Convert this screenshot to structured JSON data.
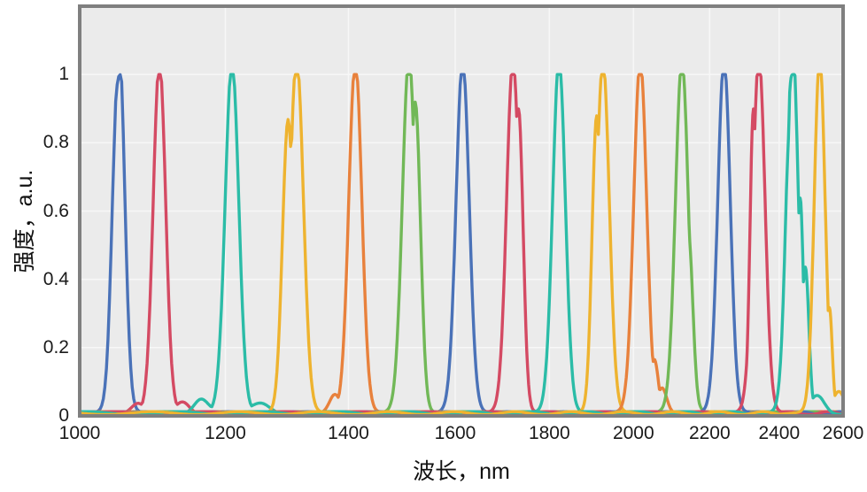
{
  "figure": {
    "background": "#ffffff",
    "plot_background": "#ebebeb",
    "frame_color": "#7f7f7f",
    "frame_width": 4,
    "grid_color": "#f7f7f7",
    "text_color": "#1a1a1a",
    "line_width": 3.4
  },
  "chart_data": {
    "type": "line",
    "title": "",
    "xlabel": "波长，nm",
    "ylabel": "强度，a.u.",
    "x_scale": "log",
    "xlim": [
      1000,
      2600
    ],
    "ylim": [
      0,
      1.2
    ],
    "x_ticks": [
      1000,
      1200,
      1400,
      1600,
      1800,
      2000,
      2200,
      2400,
      2600
    ],
    "y_ticks": [
      0,
      0.2,
      0.4,
      0.6,
      0.8,
      1
    ],
    "grid": true,
    "legend": "none",
    "description": "Sixteen normalized narrow emission spectra (tunable source) peaking at unity, centers spaced ~100 nm across 1050–2525 nm, drawn with a repeating 6-color cycle on a logarithmic wavelength axis.",
    "palette_cycle": [
      "#4a72b8",
      "#d44a63",
      "#2bbca7",
      "#eeb32f",
      "#e8813c",
      "#71b857"
    ],
    "series": [
      {
        "label": "1050 nm",
        "color": "#4a72b8",
        "center_nm": 1050,
        "fwhm_nm": 18,
        "peak_value": 1.0,
        "amp": 1.1,
        "top_notch": {
          "offset_nm": -4.5,
          "depth": 0.06,
          "width_nm": 3
        },
        "shoulders": []
      },
      {
        "label": "1105 nm",
        "color": "#d44a63",
        "center_nm": 1105,
        "fwhm_nm": 20,
        "peak_value": 1.0,
        "amp": 1.02,
        "shoulders": [
          {
            "offset_nm": -30,
            "amp": 0.025,
            "width_nm": 8
          },
          {
            "offset_nm": 33,
            "amp": 0.03,
            "width_nm": 9
          }
        ]
      },
      {
        "label": "1210 nm",
        "color": "#2bbca7",
        "center_nm": 1210,
        "fwhm_nm": 24,
        "peak_value": 1.0,
        "amp": 1.02,
        "shoulders": [
          {
            "offset_nm": -46,
            "amp": 0.04,
            "width_nm": 10
          },
          {
            "offset_nm": 45,
            "amp": 0.028,
            "width_nm": 14
          }
        ]
      },
      {
        "label": "1312 nm",
        "color": "#eeb32f",
        "center_nm": 1312,
        "fwhm_nm": 26,
        "peak_value": 1.0,
        "amp": 1.03,
        "shoulders": [
          {
            "offset_nm": -14,
            "amp": 0.85,
            "width_nm": 9
          }
        ]
      },
      {
        "label": "1412 nm",
        "color": "#e8813c",
        "center_nm": 1412,
        "fwhm_nm": 27,
        "peak_value": 1.0,
        "amp": 1.02,
        "shoulders": [
          {
            "offset_nm": -36,
            "amp": 0.05,
            "width_nm": 9
          }
        ]
      },
      {
        "label": "1510 nm",
        "color": "#71b857",
        "center_nm": 1510,
        "fwhm_nm": 29,
        "peak_value": 1.0,
        "amp": 1.03,
        "shoulders": [
          {
            "offset_nm": 12,
            "amp": 0.9,
            "width_nm": 10
          }
        ]
      },
      {
        "label": "1615 nm",
        "color": "#4a72b8",
        "center_nm": 1615,
        "fwhm_nm": 31,
        "peak_value": 1.0,
        "amp": 1.02,
        "shoulders": []
      },
      {
        "label": "1720 nm",
        "color": "#d44a63",
        "center_nm": 1720,
        "fwhm_nm": 32,
        "peak_value": 1.0,
        "amp": 1.02,
        "shoulders": [
          {
            "offset_nm": 12,
            "amp": 0.88,
            "width_nm": 10
          }
        ]
      },
      {
        "label": "1822 nm",
        "color": "#2bbca7",
        "center_nm": 1822,
        "fwhm_nm": 34,
        "peak_value": 1.0,
        "amp": 1.02,
        "shoulders": []
      },
      {
        "label": "1925 nm",
        "color": "#eeb32f",
        "center_nm": 1925,
        "fwhm_nm": 36,
        "peak_value": 1.0,
        "amp": 1.02,
        "shoulders": [
          {
            "offset_nm": -15,
            "amp": 0.86,
            "width_nm": 11
          }
        ]
      },
      {
        "label": "2017 nm",
        "color": "#e8813c",
        "center_nm": 2017,
        "fwhm_nm": 38,
        "peak_value": 1.0,
        "amp": 1.02,
        "shoulders": [
          {
            "offset_nm": 36,
            "amp": 0.15,
            "width_nm": 10
          },
          {
            "offset_nm": 56,
            "amp": 0.07,
            "width_nm": 12
          }
        ]
      },
      {
        "label": "2125 nm",
        "color": "#71b857",
        "center_nm": 2125,
        "fwhm_nm": 40,
        "peak_value": 1.0,
        "amp": 1.02,
        "shoulders": [
          {
            "offset_nm": 17,
            "amp": 0.52,
            "width_nm": 12
          }
        ]
      },
      {
        "label": "2240 nm",
        "color": "#4a72b8",
        "center_nm": 2240,
        "fwhm_nm": 41,
        "peak_value": 1.0,
        "amp": 1.02,
        "shoulders": []
      },
      {
        "label": "2340 nm",
        "color": "#d44a63",
        "center_nm": 2340,
        "fwhm_nm": 42,
        "peak_value": 1.0,
        "amp": 1.03,
        "shoulders": [
          {
            "offset_nm": -16,
            "amp": 0.88,
            "width_nm": 10
          }
        ]
      },
      {
        "label": "2440 nm",
        "color": "#2bbca7",
        "center_nm": 2440,
        "fwhm_nm": 42,
        "peak_value": 1.0,
        "amp": 1.08,
        "top_notch": {
          "offset_nm": -11,
          "depth": 0.07,
          "width_nm": 5
        },
        "shoulders": [
          {
            "offset_nm": 24,
            "amp": 0.62,
            "width_nm": 10
          },
          {
            "offset_nm": 40,
            "amp": 0.42,
            "width_nm": 11
          },
          {
            "offset_nm": 78,
            "amp": 0.05,
            "width_nm": 22
          }
        ]
      },
      {
        "label": "2525 nm",
        "color": "#eeb32f",
        "center_nm": 2525,
        "fwhm_nm": 40,
        "peak_value": 1.0,
        "amp": 1.03,
        "shoulders": [
          {
            "offset_nm": 31,
            "amp": 0.3,
            "width_nm": 9
          },
          {
            "offset_nm": 62,
            "amp": 0.06,
            "width_nm": 18
          }
        ]
      }
    ]
  }
}
